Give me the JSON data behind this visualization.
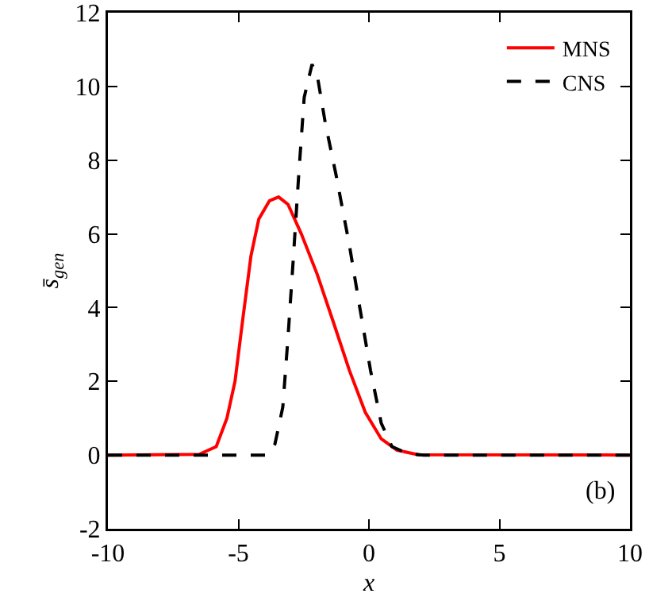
{
  "chart_data": {
    "type": "line",
    "xlabel": "x",
    "ylabel": "s̄$_{gen}$",
    "xlim": [
      -10,
      10
    ],
    "xticks": [
      -10,
      -5,
      0,
      5,
      10
    ],
    "ylim": [
      -2,
      12
    ],
    "yticks": [
      -2,
      0,
      2,
      4,
      6,
      8,
      10,
      12
    ],
    "grid": false,
    "legend": "top right",
    "marker": "none",
    "annotations": [
      "(b)"
    ],
    "series": [
      {
        "name": "MNS",
        "color": "#ff0000",
        "line_style": "solid",
        "x": [
          -10,
          -6.5,
          -5.85,
          -5.44,
          -5.13,
          -4.83,
          -4.52,
          -4.22,
          -3.81,
          -3.46,
          -3.1,
          -2.59,
          -1.98,
          -1.36,
          -0.75,
          -0.14,
          0.47,
          1.08,
          1.89,
          10
        ],
        "values": [
          0,
          0.02,
          0.23,
          1.0,
          2.0,
          3.7,
          5.4,
          6.4,
          6.9,
          7.0,
          6.8,
          6.0,
          4.9,
          3.6,
          2.3,
          1.16,
          0.44,
          0.13,
          0.01,
          0
        ]
      },
      {
        "name": "CNS",
        "color": "#000000",
        "line_style": "dashed",
        "x": [
          -10,
          -3.91,
          -3.6,
          -3.3,
          -3.1,
          -2.9,
          -2.69,
          -2.48,
          -2.18,
          -1.98,
          -1.67,
          -1.26,
          -0.75,
          -0.35,
          0.06,
          0.47,
          0.88,
          1.49,
          2.1,
          10
        ],
        "values": [
          0,
          0,
          0.3,
          1.3,
          3.2,
          5.3,
          7.6,
          9.7,
          10.6,
          10.3,
          9.0,
          7.6,
          5.7,
          4.0,
          2.3,
          0.87,
          0.23,
          0.04,
          0,
          0
        ]
      }
    ]
  }
}
